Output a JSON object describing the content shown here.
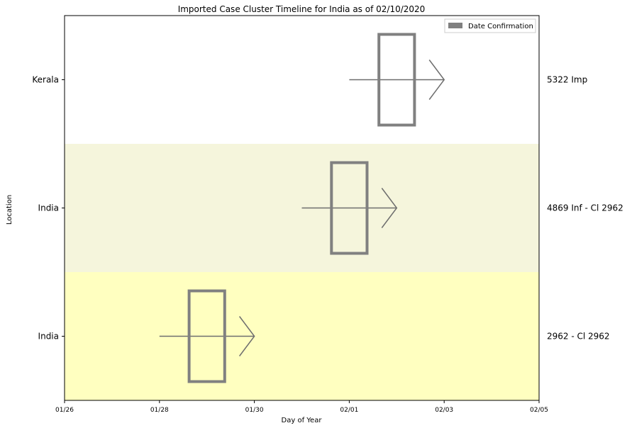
{
  "chart_data": {
    "type": "timeline",
    "title": "Imported Case Cluster Timeline for India as of 02/10/2020",
    "xlabel": "Day of Year",
    "ylabel": "Location",
    "x_ticks": [
      "01/26",
      "01/28",
      "01/30",
      "02/01",
      "02/03",
      "02/05"
    ],
    "x_range": [
      "01/26",
      "02/05"
    ],
    "legend": {
      "position": "top-right",
      "entries": [
        {
          "label": "Date Confirmation",
          "color": "#808080"
        }
      ]
    },
    "rows": [
      {
        "location": "Kerala",
        "case_label": "5322 Imp",
        "band_color": "#ffffff",
        "arrow_start": "02/01",
        "arrow_end": "02/03",
        "confirmation_start": "02/01 15:00",
        "confirmation_end": "02/02 09:00"
      },
      {
        "location": "India",
        "case_label": "4869 Inf - Cl 2962",
        "band_color": "#f5f5dc",
        "arrow_start": "01/31",
        "arrow_end": "02/02",
        "confirmation_start": "01/31 15:00",
        "confirmation_end": "02/01 09:00"
      },
      {
        "location": "India",
        "case_label": "2962 - Cl 2962",
        "band_color": "#ffffc0",
        "arrow_start": "01/28",
        "arrow_end": "01/30",
        "confirmation_start": "01/28 15:00",
        "confirmation_end": "01/29 09:00"
      }
    ]
  }
}
